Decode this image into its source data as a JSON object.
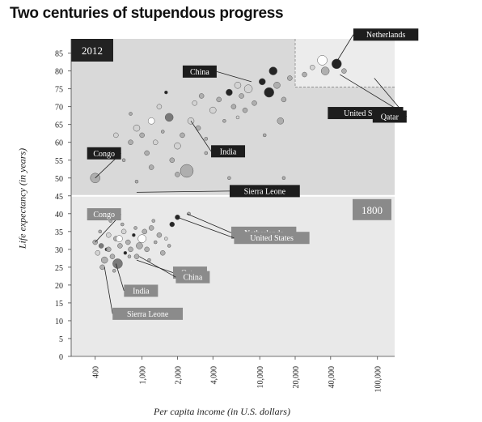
{
  "title": "Two centuries of stupendous progress",
  "chart_data": {
    "type": "scatter",
    "title": "Two centuries of stupendous progress",
    "xlabel": "Per capita income (in U.S. dollars)",
    "ylabel": "Life expectancy (in years)",
    "x_scale": "log",
    "xlim": [
      250,
      140000
    ],
    "ylim": [
      0,
      89
    ],
    "x_ticks": [
      "400",
      "1,000",
      "2,000",
      "4,000",
      "10,000",
      "20,000",
      "40,000",
      "100,000"
    ],
    "x_tick_values": [
      400,
      1000,
      2000,
      4000,
      10000,
      20000,
      40000,
      100000
    ],
    "y_ticks": [
      0,
      5,
      10,
      15,
      20,
      25,
      30,
      35,
      40,
      45,
      50,
      55,
      60,
      65,
      70,
      75,
      80,
      85
    ],
    "grid": false,
    "panels": [
      {
        "name": "2012",
        "y_range": [
          45,
          89
        ]
      },
      {
        "name": "1800",
        "y_range": [
          0,
          45
        ]
      }
    ],
    "bubble_colors": {
      "dark": "#111111",
      "mid": "#6e6e6e",
      "light": "#a9a9a9",
      "pale": "#d2d2d2",
      "white": "#ffffff"
    },
    "points_2012": [
      [
        400,
        50,
        6,
        "light"
      ],
      [
        520,
        58,
        2,
        "light"
      ],
      [
        600,
        62,
        3,
        "pale"
      ],
      [
        700,
        55,
        2,
        "light"
      ],
      [
        800,
        60,
        3,
        "light"
      ],
      [
        900,
        64,
        4,
        "pale"
      ],
      [
        1000,
        62,
        3,
        "light"
      ],
      [
        1100,
        57,
        3,
        "light"
      ],
      [
        1200,
        66,
        4,
        "white"
      ],
      [
        1300,
        60,
        3,
        "pale"
      ],
      [
        1500,
        63,
        2,
        "light"
      ],
      [
        1700,
        67,
        5,
        "mid"
      ],
      [
        1800,
        55,
        3,
        "light"
      ],
      [
        2000,
        59,
        4,
        "pale"
      ],
      [
        2200,
        62,
        3,
        "light"
      ],
      [
        2400,
        52,
        8,
        "light"
      ],
      [
        2600,
        66,
        4,
        "pale"
      ],
      [
        3000,
        64,
        3,
        "light"
      ],
      [
        3500,
        61,
        2,
        "light"
      ],
      [
        4000,
        69,
        4,
        "pale"
      ],
      [
        4500,
        72,
        3,
        "light"
      ],
      [
        5000,
        66,
        2,
        "light"
      ],
      [
        5500,
        74,
        4,
        "dark"
      ],
      [
        6000,
        70,
        3,
        "light"
      ],
      [
        6500,
        67,
        2,
        "pale"
      ],
      [
        7000,
        73,
        3,
        "light"
      ],
      [
        8000,
        75,
        5,
        "pale"
      ],
      [
        9000,
        71,
        3,
        "light"
      ],
      [
        10500,
        77,
        4,
        "dark"
      ],
      [
        12000,
        74,
        6,
        "dark"
      ],
      [
        14000,
        76,
        4,
        "light"
      ],
      [
        16000,
        72,
        3,
        "light"
      ],
      [
        18000,
        78,
        3,
        "light"
      ],
      [
        13000,
        80,
        5,
        "dark"
      ],
      [
        24000,
        79,
        3,
        "light"
      ],
      [
        28000,
        81,
        3,
        "pale"
      ],
      [
        34000,
        83,
        6,
        "white"
      ],
      [
        36000,
        80,
        5,
        "light"
      ],
      [
        45000,
        82,
        6,
        "dark"
      ],
      [
        52000,
        80,
        3,
        "light"
      ],
      [
        800,
        68,
        2,
        "light"
      ],
      [
        1400,
        70,
        3,
        "pale"
      ],
      [
        2800,
        71,
        3,
        "pale"
      ],
      [
        3200,
        73,
        3,
        "light"
      ],
      [
        6500,
        76,
        4,
        "pale"
      ],
      [
        7500,
        69,
        3,
        "light"
      ],
      [
        15000,
        66,
        4,
        "light"
      ],
      [
        11000,
        62,
        2,
        "light"
      ],
      [
        600,
        56,
        2,
        "light"
      ],
      [
        1200,
        53,
        3,
        "light"
      ],
      [
        2000,
        51,
        3,
        "light"
      ],
      [
        5500,
        50,
        2,
        "light"
      ],
      [
        16000,
        50,
        2,
        "light"
      ],
      [
        3500,
        57,
        2,
        "light"
      ],
      [
        900,
        49,
        2,
        "light"
      ],
      [
        1600,
        74,
        2,
        "dark"
      ]
    ],
    "points_1800": [
      [
        400,
        32,
        3,
        "light"
      ],
      [
        420,
        29,
        3,
        "pale"
      ],
      [
        450,
        31,
        3,
        "mid"
      ],
      [
        480,
        27,
        4,
        "light"
      ],
      [
        500,
        30,
        2,
        "dark"
      ],
      [
        520,
        34,
        3,
        "pale"
      ],
      [
        560,
        28,
        3,
        "light"
      ],
      [
        600,
        33,
        3,
        "light"
      ],
      [
        620,
        26,
        6,
        "mid"
      ],
      [
        650,
        31,
        3,
        "light"
      ],
      [
        700,
        35,
        3,
        "pale"
      ],
      [
        720,
        29,
        2,
        "dark"
      ],
      [
        760,
        32,
        3,
        "light"
      ],
      [
        800,
        30,
        3,
        "light"
      ],
      [
        850,
        34,
        2,
        "dark"
      ],
      [
        900,
        28,
        3,
        "light"
      ],
      [
        950,
        31,
        4,
        "light"
      ],
      [
        1000,
        33,
        5,
        "white"
      ],
      [
        1050,
        35,
        3,
        "light"
      ],
      [
        1100,
        30,
        3,
        "light"
      ],
      [
        1200,
        36,
        3,
        "light"
      ],
      [
        1300,
        32,
        2,
        "light"
      ],
      [
        1400,
        34,
        3,
        "light"
      ],
      [
        1500,
        29,
        3,
        "light"
      ],
      [
        1600,
        33,
        2,
        "pale"
      ],
      [
        1800,
        37,
        3,
        "dark"
      ],
      [
        2000,
        39,
        3,
        "dark"
      ],
      [
        2500,
        40,
        2,
        "light"
      ],
      [
        440,
        35,
        2,
        "light"
      ],
      [
        460,
        25,
        3,
        "light"
      ],
      [
        540,
        38,
        2,
        "light"
      ],
      [
        580,
        24,
        2,
        "light"
      ],
      [
        680,
        37,
        2,
        "light"
      ],
      [
        780,
        28,
        2,
        "light"
      ],
      [
        880,
        36,
        2,
        "light"
      ],
      [
        1150,
        27,
        2,
        "light"
      ],
      [
        1700,
        31,
        2,
        "light"
      ],
      [
        640,
        33,
        4,
        "white"
      ],
      [
        520,
        30,
        3,
        "light"
      ],
      [
        1250,
        38,
        2,
        "light"
      ]
    ],
    "annotations": [
      {
        "label": "China",
        "x": 8500,
        "y": 77,
        "panel": "2012",
        "style": "dark"
      },
      {
        "label": "Congo",
        "x": 400,
        "y": 50,
        "panel": "2012",
        "style": "dark"
      },
      {
        "label": "India",
        "x": 2600,
        "y": 66,
        "panel": "2012",
        "style": "dark"
      },
      {
        "label": "Netherlands",
        "x": 42000,
        "y": 81,
        "panel": "2012",
        "style": "dark"
      },
      {
        "label": "United States",
        "x": 48000,
        "y": 79,
        "panel": "2012",
        "style": "dark"
      },
      {
        "label": "Qatar",
        "x": 94000,
        "y": 78,
        "panel": "2012",
        "style": "dark"
      },
      {
        "label": "Sierra Leone",
        "x": 900,
        "y": 46,
        "panel": "2012",
        "style": "dark"
      },
      {
        "label": "Congo",
        "x": 400,
        "y": 32,
        "panel": "1800",
        "style": "mid"
      },
      {
        "label": "Netherlands",
        "x": 2400,
        "y": 40,
        "panel": "1800",
        "style": "mid"
      },
      {
        "label": "United States",
        "x": 2000,
        "y": 39,
        "panel": "1800",
        "style": "mid"
      },
      {
        "label": "Qatar",
        "x": 900,
        "y": 27,
        "panel": "1800",
        "style": "mid"
      },
      {
        "label": "China",
        "x": 950,
        "y": 28,
        "panel": "1800",
        "style": "mid"
      },
      {
        "label": "India",
        "x": 600,
        "y": 26,
        "panel": "1800",
        "style": "mid"
      },
      {
        "label": "Sierra Leone",
        "x": 480,
        "y": 25,
        "panel": "1800",
        "style": "mid"
      }
    ]
  }
}
